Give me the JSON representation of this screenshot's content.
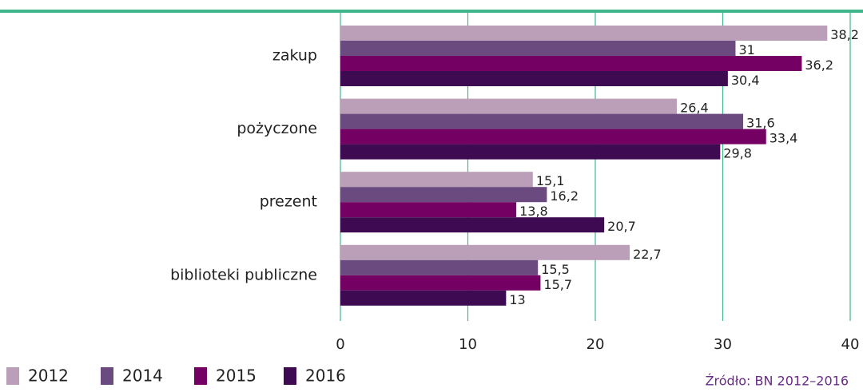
{
  "chart_data": {
    "type": "bar",
    "orientation": "horizontal",
    "categories": [
      "zakup",
      "pożyczone",
      "prezent",
      "biblioteki publiczne"
    ],
    "series": [
      {
        "name": "2012",
        "color": "#bb9fb9",
        "values": [
          38.2,
          26.4,
          15.1,
          22.7
        ],
        "value_labels": [
          "38,2",
          "26,4",
          "15,1",
          "22,7"
        ]
      },
      {
        "name": "2014",
        "color": "#6a4a7f",
        "values": [
          31,
          31.6,
          16.2,
          15.5
        ],
        "value_labels": [
          "31",
          "31,6",
          "16,2",
          "15,5"
        ]
      },
      {
        "name": "2015",
        "color": "#740064",
        "values": [
          36.2,
          33.4,
          13.8,
          15.7
        ],
        "value_labels": [
          "36,2",
          "33,4",
          "13,8",
          "15,7"
        ]
      },
      {
        "name": "2016",
        "color": "#3e0a52",
        "values": [
          30.4,
          29.8,
          20.7,
          13
        ],
        "value_labels": [
          "30,4",
          "29,8",
          "20,7",
          "13"
        ]
      }
    ],
    "xlim": [
      0,
      40
    ],
    "xticks": [
      0,
      10,
      20,
      30,
      40
    ],
    "grid": true,
    "legend": "bottom-left",
    "source": "Źródło: BN 2012–2016"
  }
}
